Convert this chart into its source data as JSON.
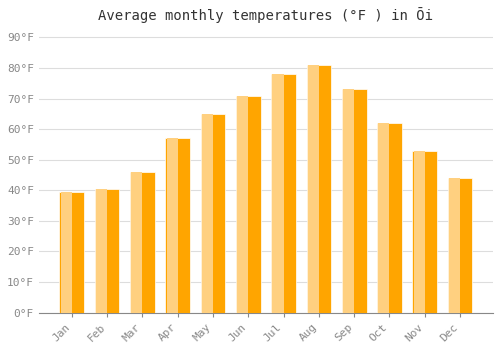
{
  "title": "Average monthly temperatures (°F ) in Ōi",
  "months": [
    "Jan",
    "Feb",
    "Mar",
    "Apr",
    "May",
    "Jun",
    "Jul",
    "Aug",
    "Sep",
    "Oct",
    "Nov",
    "Dec"
  ],
  "values": [
    39.5,
    40.5,
    46,
    57,
    65,
    71,
    78,
    81,
    73,
    62,
    53,
    44
  ],
  "bar_color_main": "#FFA500",
  "bar_color_light": "#FFD080",
  "background_color": "#FFFFFF",
  "plot_bg_color": "#FFFFFF",
  "yticks": [
    0,
    10,
    20,
    30,
    40,
    50,
    60,
    70,
    80,
    90
  ],
  "ylim": [
    0,
    93
  ],
  "grid_color": "#DDDDDD",
  "title_fontsize": 10,
  "tick_fontsize": 8,
  "tick_color": "#888888",
  "font_family": "monospace"
}
